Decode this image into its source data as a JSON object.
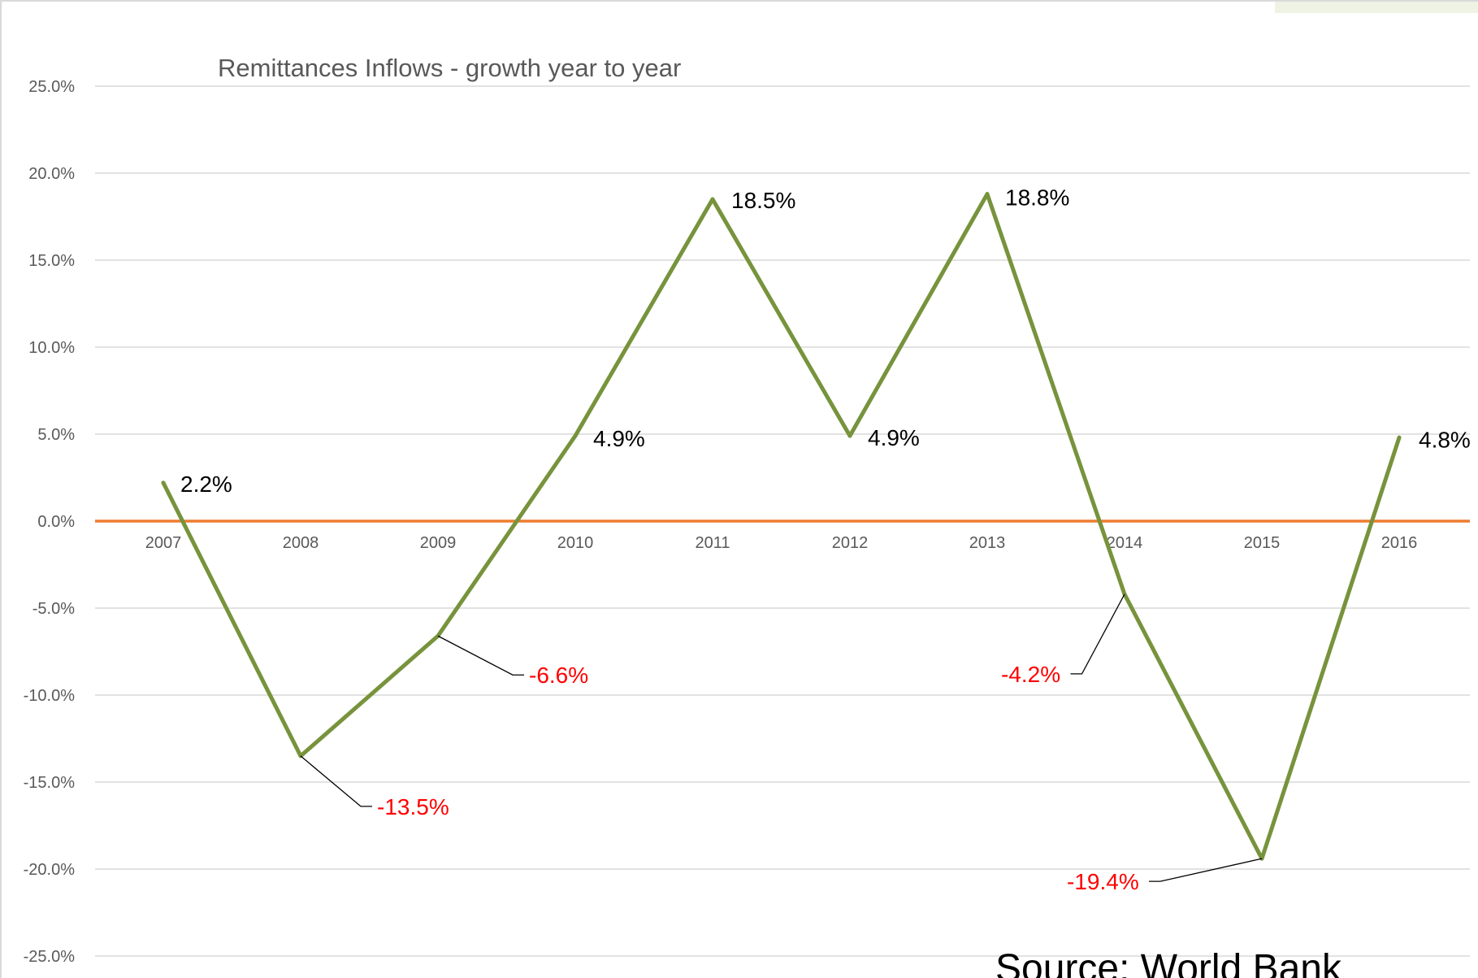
{
  "chart_data": {
    "type": "line",
    "title": "Remittances Inflows - growth year to year",
    "xlabel": "",
    "ylabel": "",
    "categories": [
      "2007",
      "2008",
      "2009",
      "2010",
      "2011",
      "2012",
      "2013",
      "2014",
      "2015",
      "2016"
    ],
    "series": [
      {
        "values": [
          2.2,
          -13.5,
          -6.6,
          4.9,
          18.5,
          4.9,
          18.8,
          -4.2,
          -19.4,
          4.8
        ],
        "color": "#77933c"
      }
    ],
    "data_labels": [
      "2.2%",
      "-13.5%",
      "-6.6%",
      "4.9%",
      "18.5%",
      "4.9%",
      "18.8%",
      "-4.2%",
      "-19.4%",
      "4.8%"
    ],
    "negative_label_color": "#ff0000",
    "positive_label_color": "#000000",
    "ylim": [
      -25,
      25
    ],
    "yticks": [
      "25.0%",
      "20.0%",
      "15.0%",
      "10.0%",
      "5.0%",
      "0.0%",
      "-5.0%",
      "-10.0%",
      "-15.0%",
      "-20.0%",
      "-25.0%"
    ],
    "grid": true,
    "zero_line_color": "#ed7d31",
    "annotation": "Source: World Bank"
  }
}
